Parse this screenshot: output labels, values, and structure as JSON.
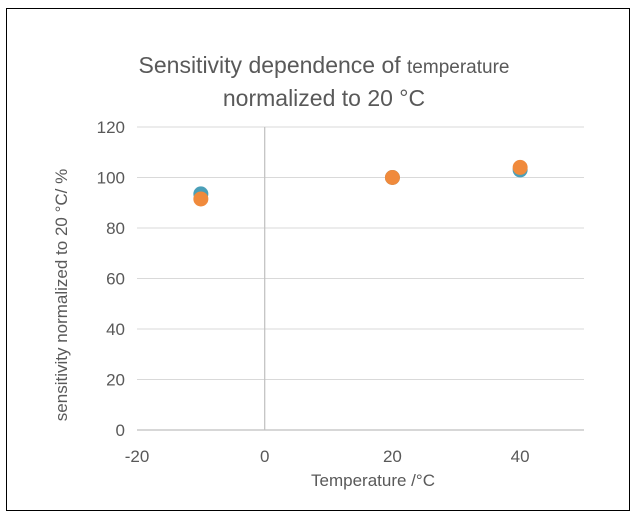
{
  "chart_data": {
    "type": "scatter",
    "title_main": "Sensitivity dependence of ",
    "title_small": "temperature",
    "title_line2": "normalized to 20 °C",
    "xlabel": "Temperature /°C",
    "ylabel": "sensitivity normalized to 20 °C/ %",
    "xlim": [
      -20,
      50
    ],
    "ylim": [
      0,
      120
    ],
    "xticks": [
      -20,
      0,
      20,
      40
    ],
    "yticks": [
      0,
      20,
      40,
      60,
      80,
      100,
      120
    ],
    "grid": true,
    "legend": "none",
    "series": [
      {
        "color": "#4a9fb8",
        "points": [
          {
            "x": -10,
            "y": 93.5
          },
          {
            "x": 20,
            "y": 100
          },
          {
            "x": 40,
            "y": 103
          }
        ]
      },
      {
        "color": "#f08a3c",
        "points": [
          {
            "x": -10,
            "y": 91.5
          },
          {
            "x": 20,
            "y": 100
          },
          {
            "x": 40,
            "y": 104
          }
        ]
      }
    ]
  }
}
